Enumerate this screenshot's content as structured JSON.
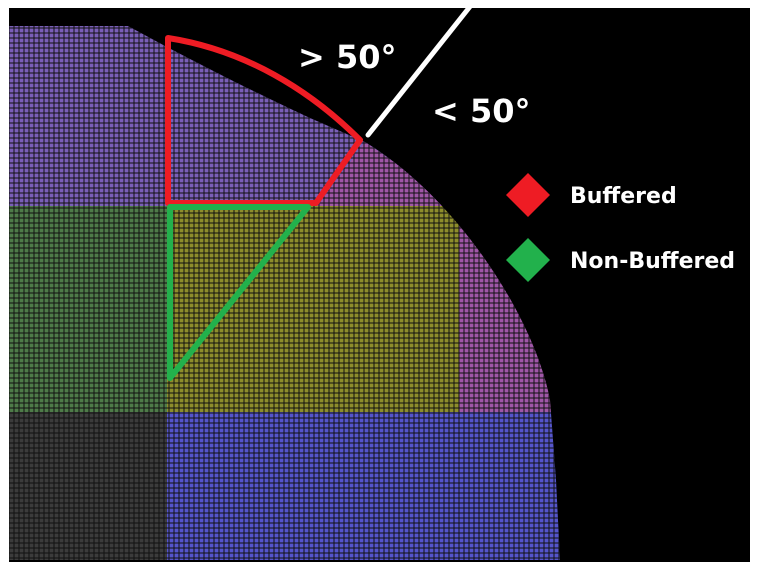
{
  "annotations": {
    "angle_greater": "> 50°",
    "angle_less": "< 50°"
  },
  "legend": {
    "buffered_label": "Buffered",
    "non_buffered_label": "Non-Buffered"
  },
  "colors": {
    "background": "#000000",
    "frame": "#ffffff",
    "buffered": "#ee1c24",
    "non_buffered": "#22b14c",
    "boundary_line": "#ffffff",
    "legend_text": "#ffffff",
    "grid_lines": "#111111",
    "region_purple_top": "#7a5fb8",
    "region_magenta_edge": "#a057a8",
    "region_green_left": "#4e7c49",
    "region_yellow_center": "#8e8e2c",
    "region_gray_bottom_left": "#3c3c3c",
    "region_blue_bottom": "#5555cc"
  }
}
